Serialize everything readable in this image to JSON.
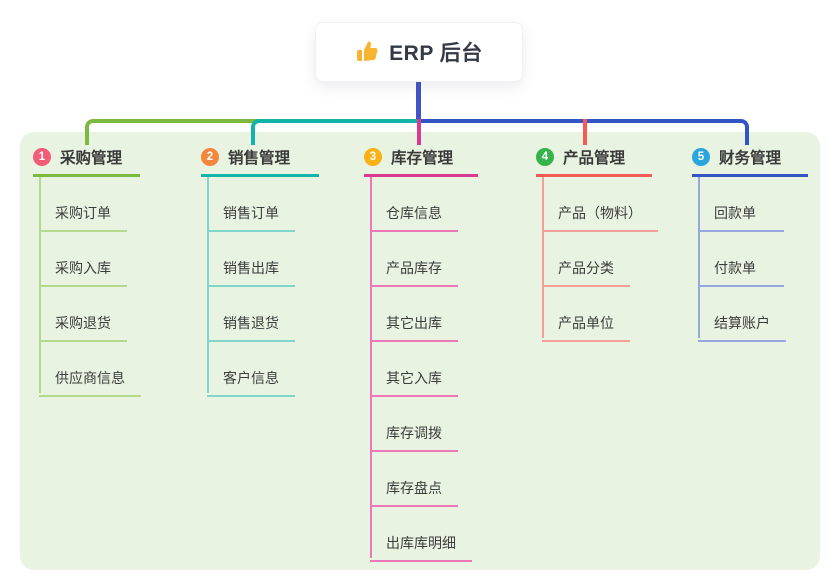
{
  "root": {
    "title": "ERP 后台",
    "icon": "thumbs-up-icon",
    "icon_color": "#f5b52e"
  },
  "panel": {
    "background": "#e8f4e1"
  },
  "stem_color": "#4254c5",
  "branches": [
    {
      "index": "1",
      "label": "采购管理",
      "badge_color": "#f25c77",
      "line_color": "#7cb93f",
      "sub_line_color": "#b2d98c",
      "children": [
        "采购订单",
        "采购入库",
        "采购退货",
        "供应商信息"
      ]
    },
    {
      "index": "2",
      "label": "销售管理",
      "badge_color": "#f6863c",
      "line_color": "#12b3a8",
      "sub_line_color": "#82d5cc",
      "children": [
        "销售订单",
        "销售出库",
        "销售退货",
        "客户信息"
      ]
    },
    {
      "index": "3",
      "label": "库存管理",
      "badge_color": "#f9b115",
      "line_color": "#d93a92",
      "sub_line_color": "#ee77b8",
      "children": [
        "仓库信息",
        "产品库存",
        "其它出库",
        "其它入库",
        "库存调拨",
        "库存盘点",
        "出库库明细"
      ]
    },
    {
      "index": "4",
      "label": "产品管理",
      "badge_color": "#35b44a",
      "line_color": "#f55b55",
      "sub_line_color": "#f79e99",
      "children": [
        "产品（物料）",
        "产品分类",
        "产品单位"
      ]
    },
    {
      "index": "5",
      "label": "财务管理",
      "badge_color": "#2aa6dd",
      "line_color": "#3355c4",
      "sub_line_color": "#96a8de",
      "children": [
        "回款单",
        "付款单",
        "结算账户"
      ]
    }
  ]
}
